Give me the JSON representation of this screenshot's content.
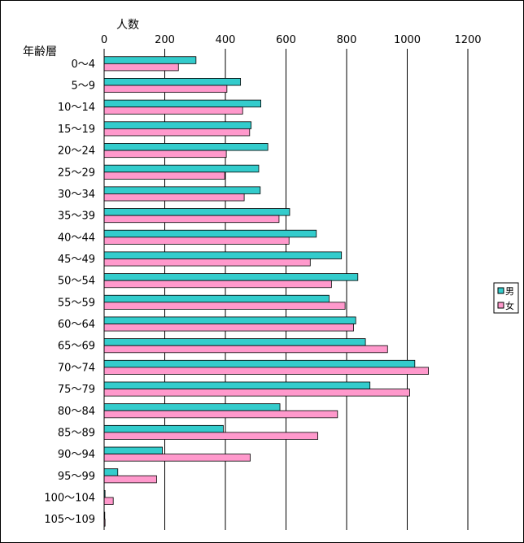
{
  "chart_data": {
    "type": "bar",
    "orientation": "horizontal",
    "title": "",
    "xlabel": "人数",
    "ylabel": "年齢層",
    "xlim": [
      0,
      1200
    ],
    "xticks": [
      "0",
      "200",
      "400",
      "600",
      "800",
      "1000",
      "1200"
    ],
    "grid": true,
    "legend_position": "right",
    "categories": [
      "0〜4",
      "5〜9",
      "10〜14",
      "15〜19",
      "20〜24",
      "25〜29",
      "30〜34",
      "35〜39",
      "40〜44",
      "45〜49",
      "50〜54",
      "55〜59",
      "60〜64",
      "65〜69",
      "70〜74",
      "75〜79",
      "80〜84",
      "85〜89",
      "90〜94",
      "95〜99",
      "100〜104",
      "105〜109"
    ],
    "series": [
      {
        "name": "男",
        "color": "#33CCCC",
        "values": [
          303,
          450,
          517,
          485,
          540,
          510,
          515,
          612,
          700,
          783,
          837,
          742,
          830,
          862,
          1025,
          877,
          580,
          393,
          192,
          45,
          3,
          1
        ]
      },
      {
        "name": "女",
        "color": "#FF99CC",
        "values": [
          245,
          405,
          457,
          480,
          403,
          398,
          462,
          577,
          610,
          680,
          750,
          795,
          823,
          935,
          1070,
          1008,
          770,
          705,
          482,
          173,
          30,
          3
        ]
      }
    ]
  }
}
